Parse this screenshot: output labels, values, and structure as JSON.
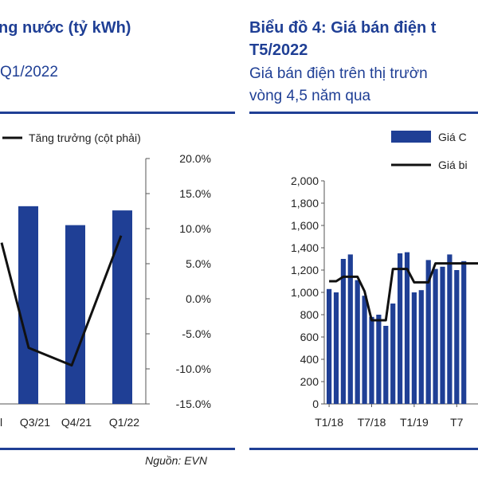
{
  "left_panel": {
    "title": "ng nước (tỷ kWh)",
    "subtitle": "Q1/2022",
    "source": "Nguồn: EVN"
  },
  "right_panel": {
    "title_line1": "Biểu đồ 4: Giá bán điện t",
    "title_line2": "T5/2022",
    "subtitle_line1": "Giá bán điện trên thị trườn",
    "subtitle_line2": "vòng 4,5 năm qua"
  },
  "colors": {
    "bar": "#1f3f95",
    "line": "#111111",
    "accent": "#1f3f95"
  },
  "chart_data": [
    {
      "type": "bar",
      "legend": [
        {
          "label": "Tăng trưởng (cột phải)",
          "kind": "line"
        }
      ],
      "categories": [
        "Q3/21",
        "Q4/21",
        "Q1/22"
      ],
      "series": [
        {
          "values": [
            null,
            null,
            null
          ],
          "axis": "left",
          "kind": "bar"
        },
        {
          "name": "Tăng trưởng (cột phải)",
          "values": [
            -7.0,
            -9.5,
            9.0
          ],
          "axis": "right",
          "kind": "line"
        }
      ],
      "y2_ticks": [
        "20.0%",
        "15.0%",
        "10.0%",
        "5.0%",
        "0.0%",
        "-5.0%",
        "-10.0%",
        "-15.0%"
      ],
      "y2lim": [
        -15,
        20
      ],
      "visible_bar_tops_pct_axis": [
        13.2,
        10.5,
        12.6
      ]
    },
    {
      "type": "bar",
      "legend": [
        {
          "label": "Giá C",
          "kind": "bar"
        },
        {
          "label": "Giá bi",
          "kind": "line"
        }
      ],
      "ylim": [
        0,
        2000
      ],
      "y_ticks": [
        "2,000",
        "1,800",
        "1,600",
        "1,400",
        "1,200",
        "1,000",
        "800",
        "600",
        "400",
        "200",
        "0"
      ],
      "x_ticks": [
        "T1/18",
        "T7/18",
        "T1/19",
        "T7"
      ],
      "series": [
        {
          "name": "Giá C",
          "kind": "bar",
          "values": [
            1030,
            1000,
            1300,
            1340,
            1110,
            970,
            780,
            800,
            700,
            900,
            1350,
            1360,
            1000,
            1020,
            1290,
            1210,
            1230,
            1340,
            1200,
            1280
          ]
        },
        {
          "name": "Giá bi",
          "kind": "line",
          "values": [
            1100,
            1100,
            1140,
            1140,
            1140,
            1010,
            750,
            750,
            750,
            1210,
            1210,
            1210,
            1090,
            1090,
            1090,
            1260,
            1260,
            1260,
            1260,
            1260
          ]
        }
      ]
    }
  ]
}
